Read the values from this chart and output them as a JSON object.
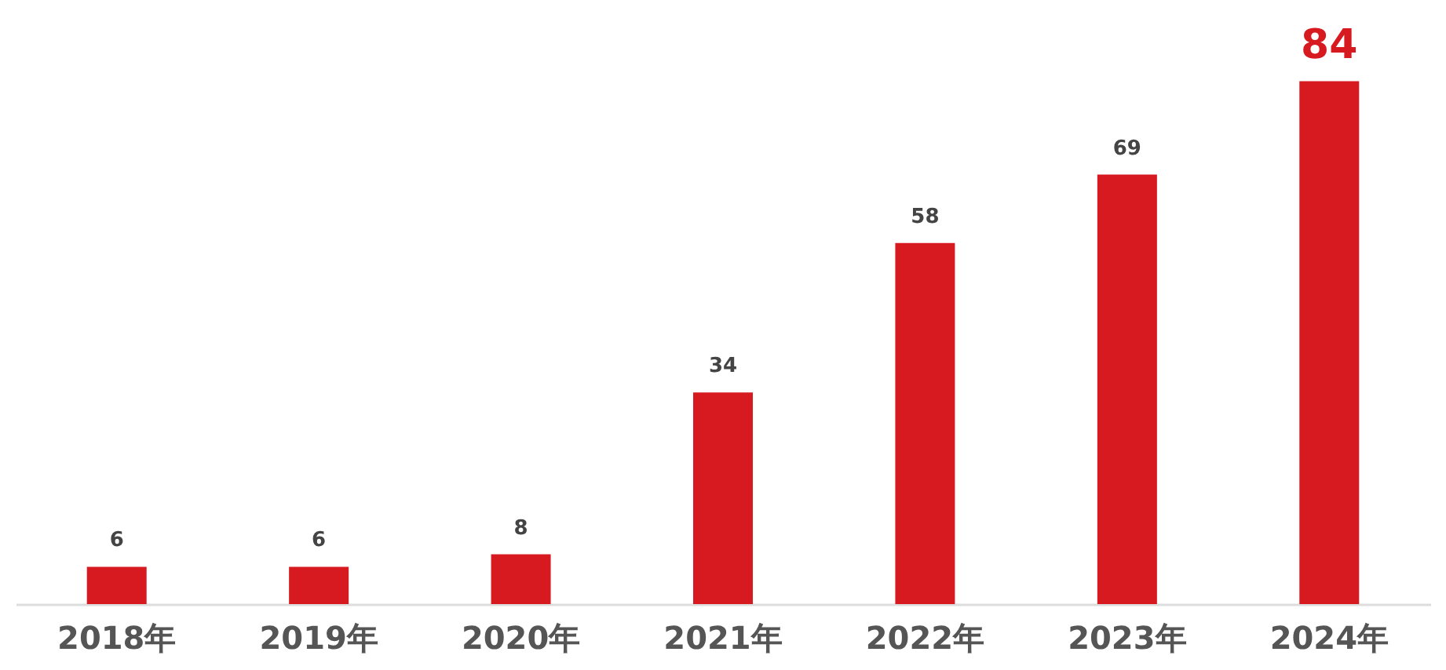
{
  "chart_data": {
    "type": "bar",
    "categories": [
      "2018年",
      "2019年",
      "2020年",
      "2021年",
      "2022年",
      "2023年",
      "2024年"
    ],
    "values": [
      6,
      6,
      8,
      34,
      58,
      69,
      84
    ],
    "color": "#d71920",
    "data_labels": true
  }
}
